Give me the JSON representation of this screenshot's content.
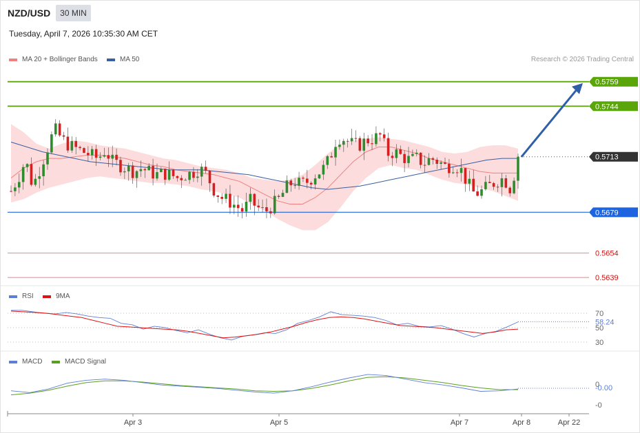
{
  "header": {
    "symbol": "NZD/USD",
    "timeframe": "30 MIN",
    "datetime": "Tuesday, April 7, 2026 10:35:30 AM CET",
    "copyright": "Research © 2026 Trading Central"
  },
  "legend": {
    "ma20": {
      "label": "MA 20 + Bollinger Bands",
      "color": "#f08080"
    },
    "ma50": {
      "label": "MA 50",
      "color": "#3a5fa0"
    },
    "rsi": {
      "label": "RSI",
      "color": "#5b7fd6"
    },
    "rsi_ma": {
      "label": "9MA",
      "color": "#e01010"
    },
    "macd": {
      "label": "MACD",
      "color": "#5b7fd6"
    },
    "macd_signal": {
      "label": "MACD Signal",
      "color": "#5aa020"
    }
  },
  "colors": {
    "up": "#2e8b2e",
    "down": "#d42020",
    "band": "#fcd6d6",
    "resistance": "#5aa60a",
    "pivot": "#1e64e0",
    "support": "#e05050",
    "arrow": "#2f5fa6"
  },
  "chart_data": {
    "type": "candlestick",
    "x_axis": {
      "tick_labels": [
        "Apr 3",
        "Apr 5",
        "Apr 7",
        "Apr 8",
        "Apr 22"
      ]
    },
    "price_range": [
      0.5634,
      0.5769
    ],
    "levels": {
      "resistance": [
        0.5759,
        0.5744
      ],
      "current": 0.5713,
      "pivot": 0.5679,
      "support": [
        0.5654,
        0.5639
      ]
    },
    "close_path": [
      0.5692,
      0.57,
      0.5711,
      0.5695,
      0.5706,
      0.5718,
      0.573,
      0.5724,
      0.572,
      0.5718,
      0.5716,
      0.5714,
      0.5712,
      0.5717,
      0.571,
      0.5708,
      0.5706,
      0.5704,
      0.5706,
      0.5704,
      0.5702,
      0.5703,
      0.5702,
      0.57,
      0.5702,
      0.5703,
      0.5706,
      0.5702,
      0.5693,
      0.5688,
      0.5686,
      0.5683,
      0.568,
      0.5686,
      0.5682,
      0.5679,
      0.5683,
      0.5687,
      0.5694,
      0.5698,
      0.5696,
      0.5698,
      0.5702,
      0.5705,
      0.5712,
      0.5725,
      0.5724,
      0.5721,
      0.572,
      0.5723,
      0.5724,
      0.5726,
      0.5715,
      0.5716,
      0.5713,
      0.5711,
      0.5712,
      0.5709,
      0.5712,
      0.571,
      0.5707,
      0.5708,
      0.5706,
      0.5697,
      0.569,
      0.5692,
      0.5695,
      0.5698,
      0.57,
      0.5693,
      0.5713
    ],
    "ma20": [
      0.57,
      0.5706,
      0.571,
      0.5712,
      0.5712,
      0.5713,
      0.5714,
      0.5714,
      0.5713,
      0.5712,
      0.571,
      0.5708,
      0.5707,
      0.5705,
      0.5704,
      0.5703,
      0.5702,
      0.57,
      0.5698,
      0.5694,
      0.569,
      0.5686,
      0.5684,
      0.5684,
      0.5688,
      0.5694,
      0.5702,
      0.571,
      0.5716,
      0.5719,
      0.5719,
      0.5717,
      0.5715,
      0.5712,
      0.571,
      0.5708,
      0.5706,
      0.5704,
      0.5703,
      0.5703,
      0.5703
    ],
    "bb_upper": [
      0.5733,
      0.5728,
      0.5721,
      0.5718,
      0.5721,
      0.5723,
      0.5722,
      0.572,
      0.5719,
      0.5718,
      0.5716,
      0.5714,
      0.5712,
      0.5711,
      0.5709,
      0.5707,
      0.5706,
      0.5705,
      0.5703,
      0.57,
      0.5699,
      0.5698,
      0.5699,
      0.5702,
      0.5708,
      0.5715,
      0.5721,
      0.5723,
      0.5724,
      0.5725,
      0.5724,
      0.5723,
      0.5721,
      0.5719,
      0.5716,
      0.5715,
      0.5716,
      0.5719,
      0.572,
      0.572,
      0.5718
    ],
    "bb_lower": [
      0.5685,
      0.5687,
      0.5691,
      0.5694,
      0.5696,
      0.5698,
      0.57,
      0.5701,
      0.57,
      0.5699,
      0.5698,
      0.5697,
      0.5697,
      0.5696,
      0.5695,
      0.5693,
      0.5692,
      0.569,
      0.5688,
      0.5684,
      0.568,
      0.5675,
      0.5671,
      0.5668,
      0.5668,
      0.5673,
      0.5682,
      0.5692,
      0.57,
      0.5706,
      0.5708,
      0.5706,
      0.5705,
      0.5702,
      0.5699,
      0.5697,
      0.5696,
      0.5694,
      0.5692,
      0.5689,
      0.5686
    ],
    "ma50": [
      0.5722,
      0.5719,
      0.5716,
      0.5714,
      0.5712,
      0.571,
      0.5709,
      0.5708,
      0.5707,
      0.5706,
      0.5705,
      0.5705,
      0.5705,
      0.5704,
      0.5703,
      0.5702,
      0.57,
      0.5698,
      0.5696,
      0.5694,
      0.5693,
      0.5694,
      0.5695,
      0.5697,
      0.5699,
      0.5701,
      0.5703,
      0.5705,
      0.5707,
      0.5709,
      0.5711,
      0.5712,
      0.5712
    ],
    "rsi": {
      "ticks": [
        "70",
        "50",
        "30"
      ],
      "current_label": "58.24",
      "value_path": [
        74,
        74,
        72,
        70,
        69,
        71,
        69,
        66,
        64,
        63,
        56,
        54,
        48,
        52,
        50,
        46,
        43,
        47,
        41,
        36,
        33,
        38,
        40,
        43,
        42,
        47,
        56,
        60,
        65,
        72,
        68,
        67,
        66,
        64,
        60,
        54,
        56,
        52,
        51,
        53,
        48,
        42,
        37,
        42,
        45,
        51,
        58
      ],
      "ma_path": [
        73,
        72,
        71,
        70,
        68,
        66,
        64,
        60,
        56,
        52,
        51,
        50,
        49,
        48,
        47,
        45,
        42,
        39,
        36,
        37,
        39,
        41,
        44,
        48,
        52,
        57,
        61,
        64,
        65,
        64,
        62,
        59,
        56,
        53,
        52,
        51,
        50,
        48,
        46,
        44,
        42,
        44,
        47,
        48
      ]
    },
    "macd": {
      "ticks": [
        "0",
        "-0"
      ],
      "current_label": "-0.00",
      "macd_path": [
        -0.2,
        -0.5,
        0.1,
        1.1,
        1.6,
        1.8,
        1.6,
        1.2,
        0.8,
        0.6,
        0.4,
        0.2,
        -0.1,
        -0.4,
        -0.6,
        -0.2,
        0.5,
        1.3,
        2.0,
        2.6,
        2.4,
        1.8,
        1.2,
        0.8,
        0.3,
        -0.3,
        -0.2,
        0.1
      ],
      "signal_path": [
        -0.9,
        -0.6,
        -0.1,
        0.6,
        1.2,
        1.5,
        1.5,
        1.3,
        1.0,
        0.7,
        0.5,
        0.3,
        0.1,
        -0.2,
        -0.3,
        -0.2,
        0.2,
        0.8,
        1.5,
        2.1,
        2.2,
        2.0,
        1.6,
        1.2,
        0.7,
        0.3,
        0.0,
        0.0
      ]
    }
  }
}
